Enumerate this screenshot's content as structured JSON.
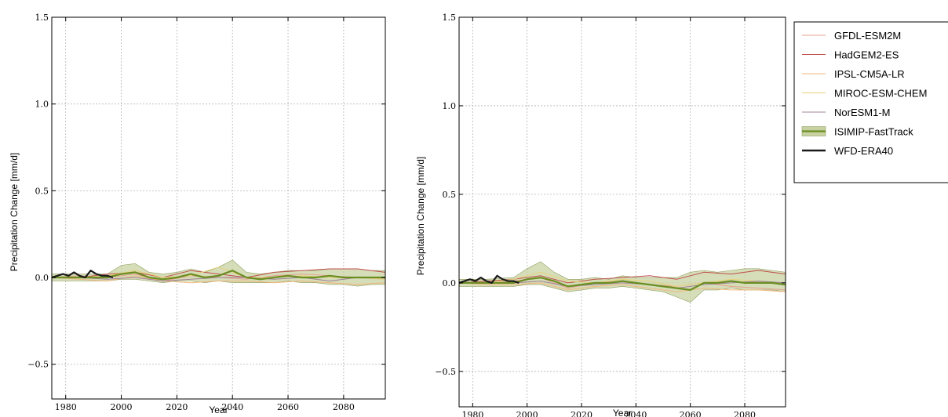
{
  "figure": {
    "legend": {
      "placement": "right of second panel, top",
      "entries": [
        {
          "label": "GFDL-ESM2M",
          "color": "#e6a08e",
          "kind": "line"
        },
        {
          "label": "HadGEM2-ES",
          "color": "#c0504d",
          "kind": "line"
        },
        {
          "label": "IPSL-CM5A-LR",
          "color": "#f2b77e",
          "kind": "line"
        },
        {
          "label": "MIROC-ESM-CHEM",
          "color": "#e8d27a",
          "kind": "line"
        },
        {
          "label": "NorESM1-M",
          "color": "#a08098",
          "kind": "line"
        },
        {
          "label": "ISIMIP-FastTrack",
          "color": "#6b8e23",
          "fill": "#c7d1a1",
          "kind": "band"
        },
        {
          "label": "WFD-ERA40",
          "color": "#1a1a1a",
          "kind": "line"
        }
      ]
    }
  },
  "chart_data": [
    {
      "type": "line",
      "xlabel": "Year",
      "ylabel": "Precipitation Change [mm/d]",
      "xlim": [
        1975,
        2095
      ],
      "ylim": [
        -0.7,
        1.5
      ],
      "xticks": [
        1980,
        2000,
        2020,
        2040,
        2060,
        2080
      ],
      "yticks": [
        1.5,
        1.0,
        0.5,
        0.0,
        -0.5
      ],
      "ytick_labels": [
        "1.5",
        "1.0",
        "0.5",
        "0.0",
        "−0.5"
      ],
      "grid": true,
      "series": [
        {
          "name": "GFDL-ESM2M",
          "color": "#e6a08e",
          "x": [
            1975,
            1985,
            1995,
            2005,
            2015,
            2025,
            2035,
            2045,
            2055,
            2065,
            2075,
            2085,
            2095
          ],
          "y": [
            0.0,
            0.01,
            0.0,
            0.02,
            -0.02,
            0.01,
            0.0,
            -0.01,
            0.01,
            0.02,
            0.01,
            0.0,
            -0.01
          ]
        },
        {
          "name": "HadGEM2-ES",
          "color": "#c0504d",
          "x": [
            1975,
            1985,
            1995,
            2005,
            2015,
            2025,
            2035,
            2045,
            2055,
            2065,
            2075,
            2085,
            2095
          ],
          "y": [
            0.0,
            0.0,
            0.02,
            0.03,
            0.0,
            0.04,
            0.02,
            0.0,
            0.03,
            0.04,
            0.05,
            0.05,
            0.03
          ]
        },
        {
          "name": "IPSL-CM5A-LR",
          "color": "#f2b77e",
          "x": [
            1975,
            1985,
            1995,
            2005,
            2015,
            2025,
            2035,
            2045,
            2055,
            2065,
            2075,
            2085,
            2095
          ],
          "y": [
            0.0,
            -0.01,
            -0.02,
            0.01,
            -0.02,
            -0.03,
            -0.02,
            -0.02,
            -0.03,
            -0.02,
            -0.03,
            -0.04,
            -0.03
          ]
        },
        {
          "name": "MIROC-ESM-CHEM",
          "color": "#e8d27a",
          "x": [
            1975,
            1985,
            1995,
            2005,
            2015,
            2025,
            2035,
            2045,
            2055,
            2065,
            2075,
            2085,
            2095
          ],
          "y": [
            0.0,
            0.0,
            0.01,
            0.04,
            0.0,
            0.01,
            0.06,
            0.0,
            0.0,
            0.01,
            0.0,
            0.0,
            -0.01
          ]
        },
        {
          "name": "NorESM1-M",
          "color": "#a08098",
          "x": [
            1975,
            1985,
            1995,
            2005,
            2015,
            2025,
            2035,
            2045,
            2055,
            2065,
            2075,
            2085,
            2095
          ],
          "y": [
            0.0,
            0.0,
            -0.01,
            0.0,
            -0.02,
            -0.01,
            0.0,
            0.0,
            -0.01,
            0.0,
            -0.02,
            0.0,
            0.0
          ]
        },
        {
          "name": "ISIMIP-FastTrack",
          "color": "#6b8e23",
          "fill": "#c7d1a1",
          "kind": "band",
          "x": [
            1975,
            1985,
            1995,
            2000,
            2005,
            2010,
            2015,
            2020,
            2025,
            2030,
            2035,
            2040,
            2045,
            2050,
            2055,
            2060,
            2065,
            2070,
            2075,
            2080,
            2085,
            2090,
            2095
          ],
          "y": [
            0.0,
            0.0,
            0.0,
            0.02,
            0.03,
            0.0,
            -0.01,
            0.0,
            0.02,
            0.0,
            0.01,
            0.04,
            0.0,
            -0.01,
            0.0,
            0.01,
            0.0,
            0.0,
            0.01,
            0.0,
            0.0,
            0.0,
            0.0
          ],
          "lower": [
            -0.02,
            -0.02,
            -0.02,
            -0.01,
            -0.01,
            -0.02,
            -0.03,
            -0.02,
            -0.02,
            -0.03,
            -0.02,
            -0.03,
            -0.03,
            -0.03,
            -0.03,
            -0.02,
            -0.03,
            -0.03,
            -0.04,
            -0.04,
            -0.05,
            -0.04,
            -0.04
          ],
          "upper": [
            0.02,
            0.02,
            0.02,
            0.07,
            0.08,
            0.03,
            0.02,
            0.03,
            0.05,
            0.03,
            0.06,
            0.1,
            0.03,
            0.02,
            0.03,
            0.04,
            0.04,
            0.04,
            0.05,
            0.05,
            0.05,
            0.04,
            0.04
          ]
        },
        {
          "name": "WFD-ERA40",
          "color": "#1a1a1a",
          "x": [
            1975,
            1977,
            1979,
            1981,
            1983,
            1985,
            1987,
            1989,
            1991,
            1993,
            1995,
            1997
          ],
          "y": [
            0.0,
            0.01,
            0.02,
            0.01,
            0.03,
            0.01,
            0.0,
            0.04,
            0.02,
            0.01,
            0.01,
            0.0
          ]
        }
      ]
    },
    {
      "type": "line",
      "xlabel": "Year",
      "ylabel": "Precipitation Change [mm/d]",
      "xlim": [
        1975,
        2095
      ],
      "ylim": [
        -0.7,
        1.5
      ],
      "xticks": [
        1980,
        2000,
        2020,
        2040,
        2060,
        2080
      ],
      "yticks": [
        1.5,
        1.0,
        0.5,
        0.0,
        -0.5
      ],
      "ytick_labels": [
        "1.5",
        "1.0",
        "0.5",
        "0.0",
        "−0.5"
      ],
      "grid": true,
      "series": [
        {
          "name": "GFDL-ESM2M",
          "color": "#e6a08e",
          "x": [
            1975,
            1985,
            1995,
            2005,
            2015,
            2025,
            2035,
            2045,
            2055,
            2065,
            2075,
            2085,
            2095
          ],
          "y": [
            0.0,
            0.0,
            0.01,
            0.03,
            -0.03,
            0.0,
            0.01,
            -0.01,
            -0.02,
            0.0,
            -0.02,
            -0.03,
            -0.04
          ]
        },
        {
          "name": "HadGEM2-ES",
          "color": "#c0504d",
          "x": [
            1975,
            1985,
            1995,
            2005,
            2015,
            2025,
            2035,
            2045,
            2055,
            2065,
            2075,
            2085,
            2095
          ],
          "y": [
            0.0,
            0.01,
            0.02,
            0.04,
            0.0,
            0.02,
            0.03,
            0.04,
            0.02,
            0.06,
            0.05,
            0.07,
            0.05
          ]
        },
        {
          "name": "IPSL-CM5A-LR",
          "color": "#f2b77e",
          "x": [
            1975,
            1985,
            1995,
            2005,
            2015,
            2025,
            2035,
            2045,
            2055,
            2065,
            2075,
            2085,
            2095
          ],
          "y": [
            0.0,
            -0.01,
            -0.01,
            0.0,
            -0.04,
            -0.02,
            -0.01,
            -0.03,
            -0.05,
            -0.03,
            -0.04,
            -0.04,
            -0.05
          ]
        },
        {
          "name": "MIROC-ESM-CHEM",
          "color": "#e8d27a",
          "x": [
            1975,
            1985,
            1995,
            2005,
            2015,
            2025,
            2035,
            2045,
            2055,
            2065,
            2075,
            2085,
            2095
          ],
          "y": [
            0.0,
            0.0,
            0.02,
            0.06,
            0.01,
            0.0,
            0.02,
            0.01,
            -0.02,
            0.0,
            0.02,
            0.01,
            -0.01
          ]
        },
        {
          "name": "NorESM1-M",
          "color": "#a08098",
          "x": [
            1975,
            1985,
            1995,
            2005,
            2015,
            2025,
            2035,
            2045,
            2055,
            2065,
            2075,
            2085,
            2095
          ],
          "y": [
            0.0,
            0.0,
            0.0,
            0.01,
            -0.02,
            -0.01,
            0.0,
            -0.01,
            -0.03,
            -0.01,
            0.0,
            0.01,
            0.0
          ]
        },
        {
          "name": "ISIMIP-FastTrack",
          "color": "#6b8e23",
          "fill": "#c7d1a1",
          "kind": "band",
          "x": [
            1975,
            1985,
            1995,
            2000,
            2005,
            2010,
            2015,
            2020,
            2025,
            2030,
            2035,
            2040,
            2045,
            2050,
            2055,
            2060,
            2065,
            2070,
            2075,
            2080,
            2085,
            2090,
            2095
          ],
          "y": [
            0.0,
            0.0,
            0.0,
            0.02,
            0.03,
            0.01,
            -0.02,
            -0.01,
            0.0,
            0.0,
            0.01,
            0.0,
            -0.01,
            -0.02,
            -0.03,
            -0.04,
            0.0,
            0.0,
            0.01,
            0.0,
            0.0,
            0.0,
            -0.01
          ],
          "lower": [
            -0.02,
            -0.02,
            -0.02,
            -0.01,
            -0.01,
            -0.03,
            -0.05,
            -0.04,
            -0.03,
            -0.03,
            -0.02,
            -0.03,
            -0.04,
            -0.05,
            -0.08,
            -0.11,
            -0.04,
            -0.04,
            -0.03,
            -0.04,
            -0.04,
            -0.04,
            -0.05
          ],
          "upper": [
            0.02,
            0.02,
            0.03,
            0.08,
            0.12,
            0.06,
            0.02,
            0.02,
            0.03,
            0.02,
            0.04,
            0.03,
            0.03,
            0.03,
            0.03,
            0.06,
            0.07,
            0.06,
            0.07,
            0.08,
            0.08,
            0.07,
            0.06
          ]
        },
        {
          "name": "WFD-ERA40",
          "color": "#1a1a1a",
          "x": [
            1975,
            1977,
            1979,
            1981,
            1983,
            1985,
            1987,
            1989,
            1991,
            1993,
            1995,
            1997
          ],
          "y": [
            0.0,
            0.01,
            0.02,
            0.01,
            0.03,
            0.01,
            0.0,
            0.04,
            0.02,
            0.01,
            0.01,
            0.0
          ]
        }
      ]
    }
  ]
}
